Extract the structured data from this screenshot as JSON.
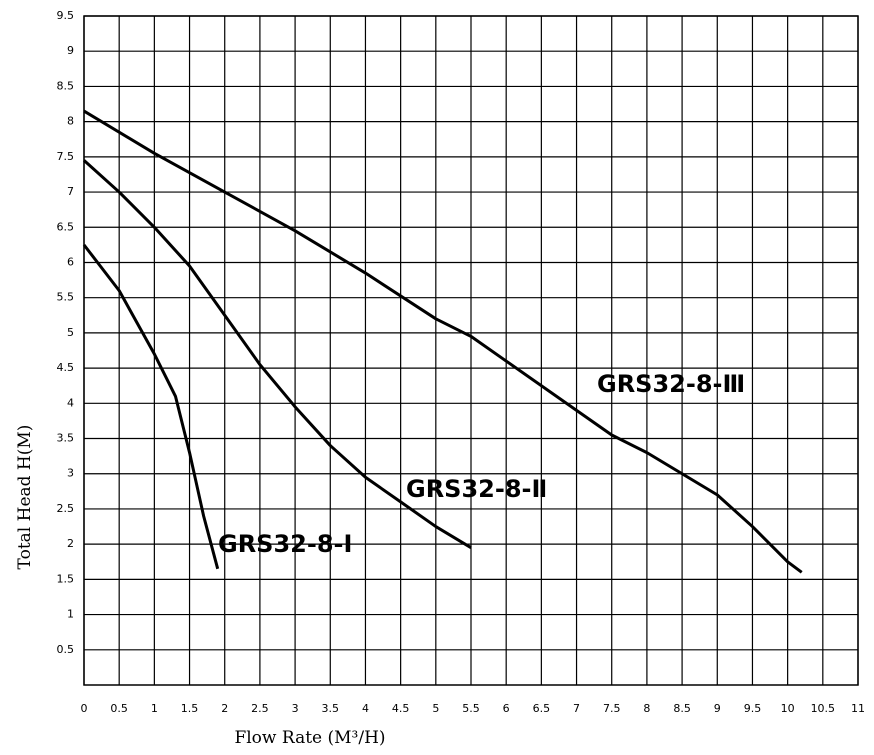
{
  "chart_data": {
    "type": "line",
    "x_label": "Flow Rate (M³/H)",
    "y_label": "Total Head H(M)",
    "xlim": [
      0,
      11
    ],
    "xticks": [
      0,
      0.5,
      1,
      1.5,
      2,
      2.5,
      3,
      3.5,
      4,
      4.5,
      5,
      5.5,
      6,
      6.5,
      7,
      7.5,
      8,
      8.5,
      9,
      9.5,
      10,
      10.5,
      11
    ],
    "ylim": [
      0,
      9.5
    ],
    "yticks": [
      0.5,
      1,
      1.5,
      2,
      2.5,
      3,
      3.5,
      4,
      4.5,
      5,
      5.5,
      6,
      6.5,
      7,
      7.5,
      8,
      8.5,
      9,
      9.5
    ],
    "grid": true,
    "series": [
      {
        "name": "GRS32-8-Ⅰ",
        "color": "#000000",
        "x": [
          0,
          0.5,
          1,
          1.3,
          1.5,
          1.7,
          1.9
        ],
        "values": [
          6.25,
          5.6,
          4.7,
          4.1,
          3.3,
          2.4,
          1.65
        ]
      },
      {
        "name": "GRS32-8-Ⅱ",
        "color": "#000000",
        "x": [
          0,
          0.5,
          1,
          1.5,
          2,
          2.5,
          3,
          3.5,
          4,
          4.5,
          5,
          5.5
        ],
        "values": [
          7.45,
          7.0,
          6.5,
          5.95,
          5.25,
          4.55,
          3.95,
          3.4,
          2.95,
          2.6,
          2.25,
          1.95
        ]
      },
      {
        "name": "GRS32-8-Ⅲ",
        "color": "#000000",
        "x": [
          0,
          1,
          2,
          3,
          4,
          5,
          5.5,
          6,
          7,
          7.5,
          8,
          8.5,
          9,
          9.5,
          10,
          10.2
        ],
        "values": [
          8.15,
          7.55,
          7.0,
          6.45,
          5.85,
          5.2,
          4.95,
          4.6,
          3.9,
          3.55,
          3.3,
          3.0,
          2.7,
          2.25,
          1.75,
          1.6
        ]
      }
    ]
  }
}
